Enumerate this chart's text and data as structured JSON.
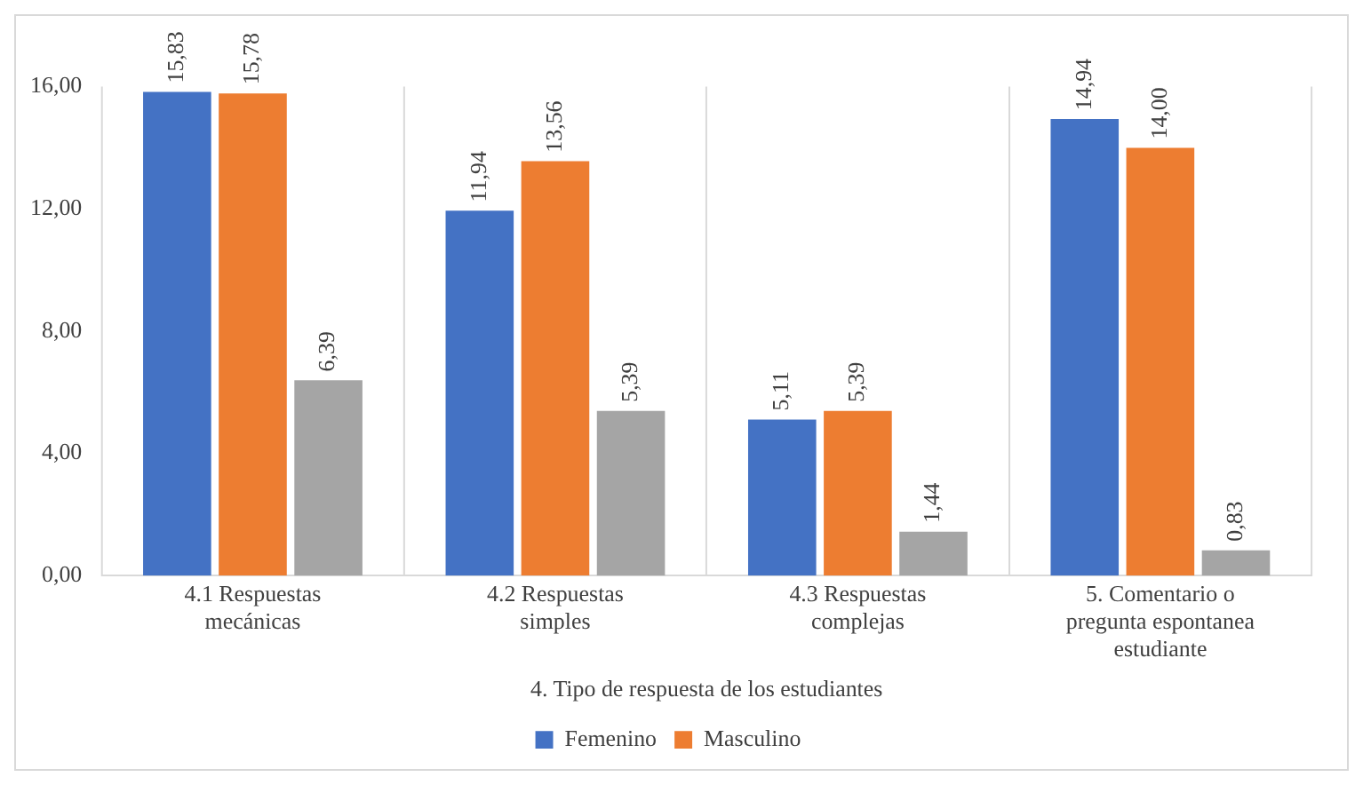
{
  "chart_data": {
    "type": "bar",
    "xlabel": "4. Tipo de respuesta de los estudiantes",
    "categories": [
      "4.1 Respuestas mecánicas",
      "4.2 Respuestas simples",
      "4.3 Respuestas complejas",
      "5. Comentario o pregunta espontanea estudiante"
    ],
    "series": [
      {
        "name": "Femenino",
        "color": "#4472c4",
        "values": [
          15.83,
          11.94,
          5.11,
          14.94
        ],
        "value_labels": [
          "15,83",
          "11,94",
          "5,11",
          "14,94"
        ]
      },
      {
        "name": "Masculino",
        "color": "#ed7d31",
        "values": [
          15.78,
          13.56,
          5.39,
          14.0
        ],
        "value_labels": [
          "15,78",
          "13,56",
          "5,39",
          "14,00"
        ]
      },
      {
        "color": "#a5a5a5",
        "values": [
          6.39,
          5.39,
          1.44,
          0.83
        ],
        "value_labels": [
          "6,39",
          "5,39",
          "1,44",
          "0,83"
        ]
      }
    ],
    "ylim": [
      0,
      16
    ],
    "yticks": [
      {
        "value": 0,
        "label": "0,00"
      },
      {
        "value": 4,
        "label": "4,00"
      },
      {
        "value": 8,
        "label": "8,00"
      },
      {
        "value": 12,
        "label": "12,00"
      },
      {
        "value": 16,
        "label": "16,00"
      }
    ],
    "grid": "x",
    "legend": "bottom"
  }
}
